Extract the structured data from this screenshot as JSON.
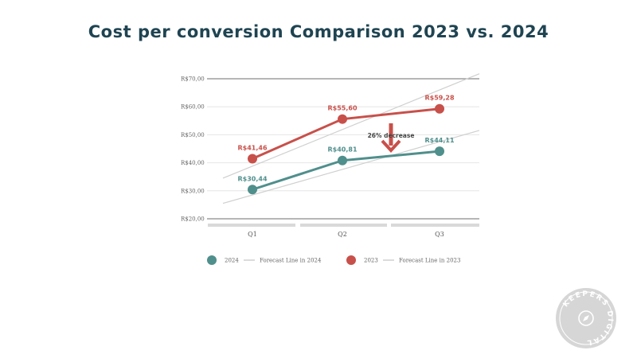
{
  "title": "Cost per conversion Comparison 2023 vs. 2024",
  "colors": {
    "series_2024": "#4f8f8c",
    "series_2023": "#c8504a",
    "forecast": "#cfcfcf",
    "title": "#1f4452",
    "annotation_arrow": "#c8504a",
    "badge": "#d6d6d6"
  },
  "chart_data": {
    "type": "line",
    "title": "Cost per conversion Comparison 2023 vs. 2024",
    "categories": [
      "Q1",
      "Q2",
      "Q3"
    ],
    "y_ticks": [
      "R$70,00",
      "R$60,00",
      "R$50,00",
      "R$40,00",
      "R$30,00",
      "R$20,00"
    ],
    "ylim": [
      20,
      70
    ],
    "grid": true,
    "series": [
      {
        "name": "2024",
        "values": [
          30.44,
          40.81,
          44.11
        ],
        "labels": [
          "R$30,44",
          "R$40,81",
          "R$44,11"
        ]
      },
      {
        "name": "2023",
        "values": [
          41.46,
          55.6,
          59.28
        ],
        "labels": [
          "R$41,46",
          "R$55,60",
          "R$59,28"
        ]
      }
    ],
    "forecast_lines": [
      {
        "name": "Forecast Line in 2024",
        "values": [
          28.5,
          37.5,
          47.5
        ]
      },
      {
        "name": "Forecast Line in 2023",
        "values": [
          38.8,
          52.5,
          66.0
        ]
      }
    ],
    "annotation": {
      "text": "26% decrease",
      "category": "Q2.5"
    },
    "legend_position": "bottom"
  },
  "legend": [
    {
      "label": "2024",
      "kind": "dot",
      "color_key": "series_2024"
    },
    {
      "label": "Forecast Line in 2024",
      "kind": "line",
      "color_key": "forecast"
    },
    {
      "label": "2023",
      "kind": "dot",
      "color_key": "series_2023"
    },
    {
      "label": "Forecast Line in 2023",
      "kind": "line",
      "color_key": "forecast"
    }
  ],
  "badge": {
    "text": "KEEPERS DIGITAL",
    "icon": "compass-icon"
  }
}
